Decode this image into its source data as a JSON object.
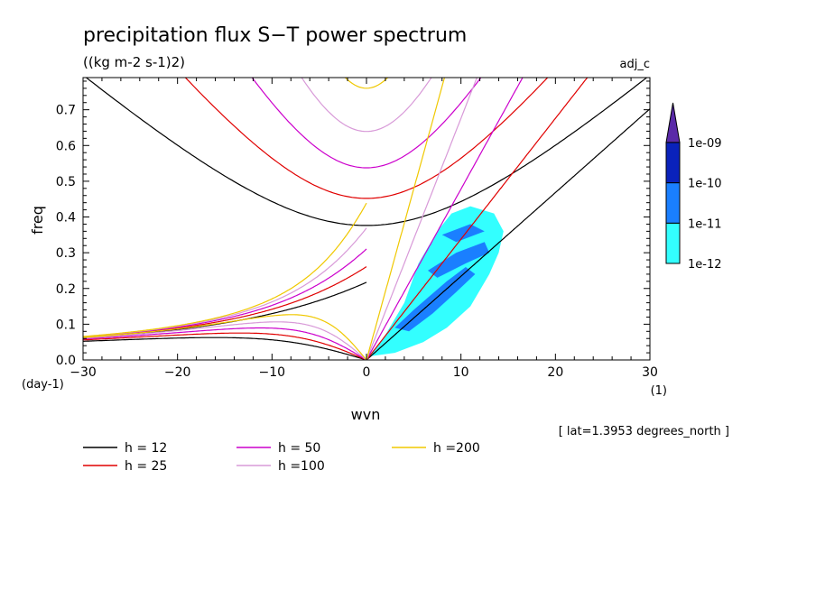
{
  "chart_data": {
    "type": "contour",
    "title": "precipitation flux S−T power spectrum",
    "units": "((kg m-2 s-1)2)",
    "dataset_label": "adj_c",
    "xlabel": "wvn",
    "ylabel": "freq",
    "x_unit": "(1)",
    "y_unit": "(day-1)",
    "note": "[ lat=1.3953 degrees_north ]",
    "xlim": [
      -30,
      30
    ],
    "ylim": [
      0,
      0.79
    ],
    "x_ticks": [
      -30,
      -20,
      -10,
      0,
      10,
      20,
      30
    ],
    "x_tick_labels": [
      "−30",
      "−20",
      "−10",
      "0",
      "10",
      "20",
      "30"
    ],
    "y_ticks": [
      0,
      0.1,
      0.2,
      0.3,
      0.4,
      0.5,
      0.6,
      0.7
    ],
    "y_tick_labels": [
      "0.0",
      "0.1",
      "0.2",
      "0.3",
      "0.4",
      "0.5",
      "0.6",
      "0.7"
    ],
    "colorbar": {
      "levels": [
        "1e-12",
        "1e-11",
        "1e-10",
        "1e-09"
      ],
      "colors": [
        "#33ffff",
        "#1a7fff",
        "#0a22bb",
        "#5a2aa8"
      ]
    },
    "series": [
      {
        "name": "h = 12",
        "h": 12,
        "color": "#000000"
      },
      {
        "name": "h = 25",
        "h": 25,
        "color": "#e00000"
      },
      {
        "name": "h = 50",
        "h": 50,
        "color": "#cc00cc"
      },
      {
        "name": "h =100",
        "h": 100,
        "color": "#d89ad8"
      },
      {
        "name": "h =200",
        "h": 200,
        "color": "#f0c800"
      }
    ],
    "filled_regions": [
      {
        "level": "1e-12",
        "polygon": [
          [
            0.3,
            0.01
          ],
          [
            2.0,
            0.07
          ],
          [
            4.0,
            0.16
          ],
          [
            5.5,
            0.27
          ],
          [
            7.5,
            0.36
          ],
          [
            9.0,
            0.41
          ],
          [
            11.0,
            0.43
          ],
          [
            13.5,
            0.41
          ],
          [
            14.5,
            0.36
          ],
          [
            14.0,
            0.3
          ],
          [
            13.0,
            0.24
          ],
          [
            11.0,
            0.15
          ],
          [
            8.5,
            0.09
          ],
          [
            6.0,
            0.05
          ],
          [
            3.0,
            0.02
          ]
        ]
      },
      {
        "level": "1e-11",
        "polygon": [
          [
            3.0,
            0.09
          ],
          [
            5.0,
            0.14
          ],
          [
            8.5,
            0.22
          ],
          [
            10.5,
            0.26
          ],
          [
            11.5,
            0.24
          ],
          [
            9.5,
            0.19
          ],
          [
            7.0,
            0.13
          ],
          [
            4.5,
            0.08
          ]
        ]
      },
      {
        "level": "1e-11",
        "polygon": [
          [
            6.5,
            0.25
          ],
          [
            9.5,
            0.3
          ],
          [
            12.5,
            0.33
          ],
          [
            13.0,
            0.3
          ],
          [
            10.5,
            0.27
          ],
          [
            7.5,
            0.23
          ]
        ]
      },
      {
        "level": "1e-11",
        "polygon": [
          [
            8.0,
            0.35
          ],
          [
            11.0,
            0.38
          ],
          [
            12.5,
            0.36
          ],
          [
            9.5,
            0.33
          ]
        ]
      }
    ]
  }
}
